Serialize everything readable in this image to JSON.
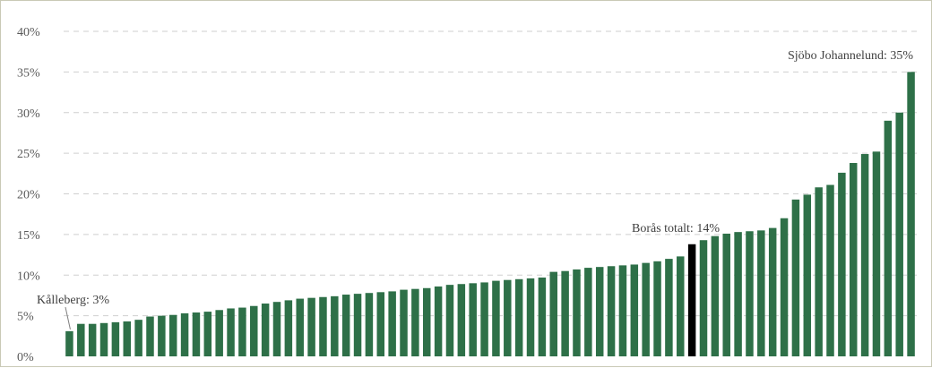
{
  "chart_data": {
    "type": "bar",
    "title": "",
    "xlabel": "",
    "ylabel": "",
    "ylim": [
      0,
      40
    ],
    "grid": true,
    "grid_style": "dashed",
    "colors": {
      "bar": "#2e7048",
      "highlight": "#000000",
      "grid": "#cfcfcf"
    },
    "yticks": [
      {
        "value": 0,
        "label": "0%"
      },
      {
        "value": 5,
        "label": "5%"
      },
      {
        "value": 10,
        "label": "10%"
      },
      {
        "value": 15,
        "label": "15%"
      },
      {
        "value": 20,
        "label": "20%"
      },
      {
        "value": 25,
        "label": "25%"
      },
      {
        "value": 30,
        "label": "30%"
      },
      {
        "value": 35,
        "label": "35%"
      },
      {
        "value": 40,
        "label": "40%"
      }
    ],
    "highlight_index": 54,
    "values": [
      3.1,
      4.0,
      4.0,
      4.1,
      4.2,
      4.3,
      4.5,
      4.9,
      5.0,
      5.1,
      5.3,
      5.4,
      5.5,
      5.7,
      5.9,
      6.0,
      6.2,
      6.5,
      6.7,
      6.9,
      7.1,
      7.2,
      7.3,
      7.4,
      7.6,
      7.7,
      7.8,
      7.9,
      8.0,
      8.2,
      8.3,
      8.4,
      8.6,
      8.8,
      8.9,
      9.0,
      9.1,
      9.3,
      9.4,
      9.5,
      9.6,
      9.7,
      10.4,
      10.5,
      10.7,
      10.9,
      11.0,
      11.1,
      11.2,
      11.3,
      11.5,
      11.7,
      12.0,
      12.3,
      13.8,
      14.3,
      14.8,
      15.1,
      15.3,
      15.4,
      15.5,
      15.8,
      17.0,
      19.3,
      19.9,
      20.8,
      21.1,
      22.6,
      23.8,
      24.9,
      25.2,
      29.0,
      30.0,
      35.0
    ],
    "annotations": [
      {
        "text": "Kålleberg: 3%",
        "index": 0
      },
      {
        "text": "Borås totalt: 14%",
        "index": 54
      },
      {
        "text": "Sjöbo Johannelund: 35%",
        "index": 73
      }
    ]
  }
}
